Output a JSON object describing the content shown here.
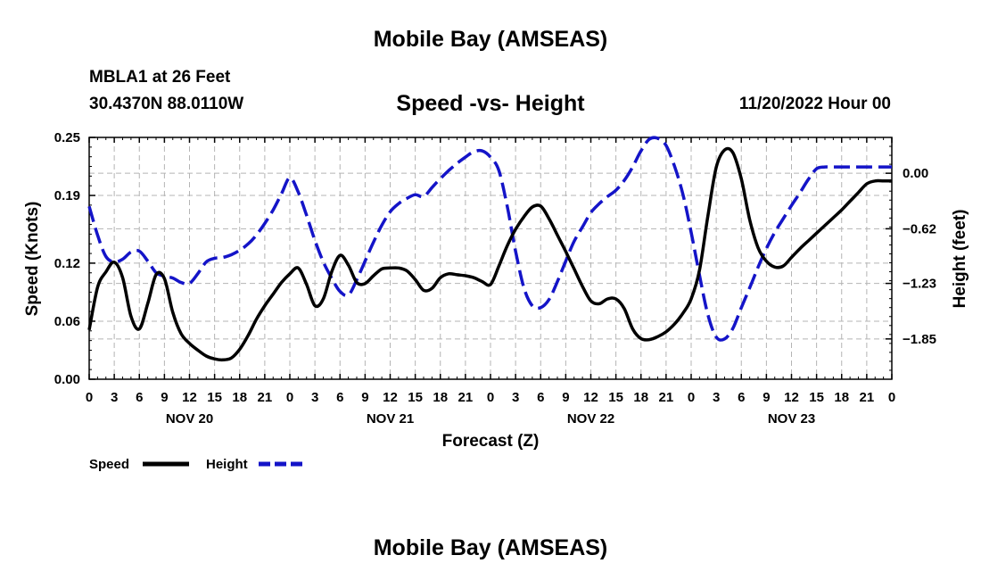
{
  "header": {
    "title": "Mobile Bay (AMSEAS)",
    "station": "MBLA1 at 26 Feet",
    "coords": "30.4370N  88.0110W",
    "subtitle": "Speed -vs- Height",
    "run_time": "11/20/2022 Hour 00"
  },
  "footer": {
    "title": "Mobile Bay (AMSEAS)"
  },
  "colors": {
    "speed": "#000000",
    "height": "#1414c8",
    "grid": "#b4b4b4"
  },
  "chart_data": {
    "type": "line",
    "title": "Speed -vs- Height",
    "xlabel": "Forecast (Z)",
    "ylabel_left": "Speed (Knots)",
    "ylabel_right": "Height (feet)",
    "xlim": [
      0,
      96
    ],
    "ylim_left": [
      0,
      0.25
    ],
    "ylim_right": [
      -2.3,
      0.4
    ],
    "x_ticks": [
      0,
      3,
      6,
      9,
      12,
      15,
      18,
      21,
      24,
      27,
      30,
      33,
      36,
      39,
      42,
      45,
      48,
      51,
      54,
      57,
      60,
      63,
      66,
      69,
      72,
      75,
      78,
      81,
      84,
      87,
      90,
      93,
      96
    ],
    "x_tick_labels": [
      "0",
      "3",
      "6",
      "9",
      "12",
      "15",
      "18",
      "21",
      "0",
      "3",
      "6",
      "9",
      "12",
      "15",
      "18",
      "21",
      "0",
      "3",
      "6",
      "9",
      "12",
      "15",
      "18",
      "21",
      "0",
      "3",
      "6",
      "9",
      "12",
      "15",
      "18",
      "21",
      "0"
    ],
    "day_labels": [
      {
        "x": 12,
        "label": "NOV 20"
      },
      {
        "x": 36,
        "label": "NOV 21"
      },
      {
        "x": 60,
        "label": "NOV 22"
      },
      {
        "x": 84,
        "label": "NOV 23"
      }
    ],
    "y_ticks_left": [
      0.0,
      0.06,
      0.12,
      0.19,
      0.25
    ],
    "y_tick_labels_left": [
      "0.00",
      "0.06",
      "0.12",
      "0.19",
      "0.25"
    ],
    "y_ticks_right": [
      0.0,
      -0.62,
      -1.23,
      -1.85
    ],
    "y_tick_labels_right": [
      "0.00",
      "−0.62",
      "−1.23",
      "−1.85"
    ],
    "grid": true,
    "legend": {
      "position": "bottom-left",
      "entries": [
        "Speed",
        "Height"
      ]
    },
    "series": [
      {
        "name": "Speed",
        "axis": "left",
        "style": "solid",
        "x": [
          0,
          1,
          2,
          3,
          4,
          5,
          6,
          7,
          8,
          9,
          10,
          11,
          12,
          13,
          14,
          15,
          16,
          17,
          18,
          19,
          20,
          21,
          22,
          23,
          24,
          25,
          26,
          27,
          28,
          29,
          30,
          31,
          32,
          33,
          34,
          35,
          36,
          37,
          38,
          39,
          40,
          41,
          42,
          43,
          44,
          45,
          46,
          47,
          48,
          49,
          50,
          51,
          52,
          53,
          54,
          55,
          56,
          57,
          58,
          59,
          60,
          61,
          62,
          63,
          64,
          65,
          66,
          67,
          68,
          69,
          70,
          71,
          72,
          73,
          74,
          75,
          76,
          77,
          78,
          79,
          80,
          81,
          82,
          83,
          84,
          85,
          86,
          87,
          88,
          89,
          90,
          91,
          92,
          93,
          94,
          95,
          96
        ],
        "values": [
          0.051,
          0.095,
          0.111,
          0.121,
          0.105,
          0.065,
          0.052,
          0.078,
          0.108,
          0.104,
          0.069,
          0.047,
          0.037,
          0.03,
          0.024,
          0.021,
          0.02,
          0.022,
          0.031,
          0.045,
          0.062,
          0.076,
          0.088,
          0.1,
          0.109,
          0.115,
          0.098,
          0.076,
          0.083,
          0.111,
          0.128,
          0.118,
          0.1,
          0.099,
          0.107,
          0.114,
          0.115,
          0.115,
          0.112,
          0.103,
          0.092,
          0.094,
          0.105,
          0.109,
          0.108,
          0.107,
          0.105,
          0.101,
          0.098,
          0.117,
          0.138,
          0.155,
          0.168,
          0.178,
          0.179,
          0.166,
          0.149,
          0.132,
          0.114,
          0.096,
          0.081,
          0.078,
          0.083,
          0.083,
          0.073,
          0.052,
          0.042,
          0.041,
          0.044,
          0.049,
          0.057,
          0.068,
          0.083,
          0.113,
          0.169,
          0.219,
          0.237,
          0.234,
          0.207,
          0.165,
          0.136,
          0.122,
          0.116,
          0.117,
          0.126,
          0.135,
          0.143,
          0.151,
          0.159,
          0.167,
          0.175,
          0.184,
          0.193,
          0.202,
          0.205,
          0.205,
          0.205
        ]
      },
      {
        "name": "Height",
        "axis": "right",
        "style": "dashed",
        "x": [
          0,
          1,
          2,
          3,
          4,
          5,
          6,
          7,
          8,
          9,
          10,
          11,
          12,
          13,
          14,
          15,
          16,
          17,
          18,
          19,
          20,
          21,
          22,
          23,
          24,
          25,
          26,
          27,
          28,
          29,
          30,
          31,
          32,
          33,
          34,
          35,
          36,
          37,
          38,
          39,
          40,
          41,
          42,
          43,
          44,
          45,
          46,
          47,
          48,
          49,
          50,
          51,
          52,
          53,
          54,
          55,
          56,
          57,
          58,
          59,
          60,
          61,
          62,
          63,
          64,
          65,
          66,
          67,
          68,
          69,
          70,
          71,
          72,
          73,
          74,
          75,
          76,
          77,
          78,
          79,
          80,
          81,
          82,
          83,
          84,
          85,
          86,
          87,
          88,
          89,
          90,
          91,
          92,
          93,
          94,
          95,
          96
        ],
        "values": [
          -0.37,
          -0.69,
          -0.93,
          -0.99,
          -0.96,
          -0.88,
          -0.87,
          -0.98,
          -1.11,
          -1.15,
          -1.17,
          -1.22,
          -1.23,
          -1.12,
          -0.99,
          -0.95,
          -0.94,
          -0.91,
          -0.86,
          -0.79,
          -0.69,
          -0.56,
          -0.41,
          -0.23,
          -0.05,
          -0.21,
          -0.47,
          -0.75,
          -0.99,
          -1.17,
          -1.32,
          -1.36,
          -1.19,
          -0.98,
          -0.77,
          -0.58,
          -0.43,
          -0.34,
          -0.28,
          -0.24,
          -0.26,
          -0.16,
          -0.06,
          0.03,
          0.11,
          0.18,
          0.24,
          0.25,
          0.18,
          0.03,
          -0.37,
          -0.87,
          -1.28,
          -1.48,
          -1.5,
          -1.41,
          -1.21,
          -0.98,
          -0.76,
          -0.6,
          -0.44,
          -0.34,
          -0.26,
          -0.19,
          -0.08,
          0.07,
          0.25,
          0.38,
          0.39,
          0.31,
          0.08,
          -0.23,
          -0.66,
          -1.14,
          -1.58,
          -1.83,
          -1.85,
          -1.73,
          -1.5,
          -1.28,
          -1.05,
          -0.84,
          -0.66,
          -0.51,
          -0.36,
          -0.22,
          -0.07,
          0.05,
          0.07,
          0.07,
          0.07,
          0.07,
          0.07,
          0.07,
          0.07,
          0.07,
          0.07
        ]
      }
    ]
  }
}
